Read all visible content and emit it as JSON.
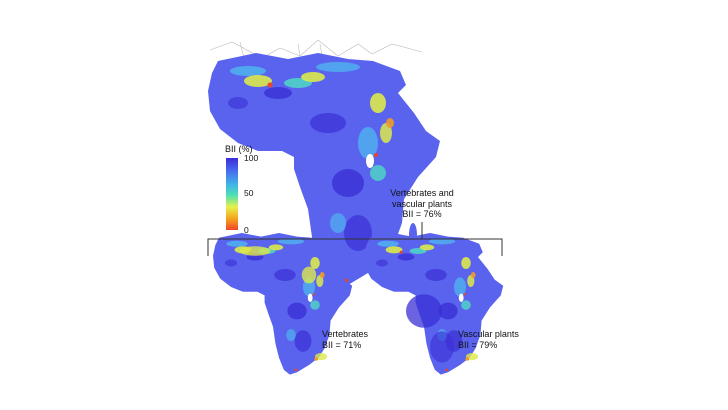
{
  "legend": {
    "title": "BII (%)",
    "ticks": [
      "100",
      "50",
      "0"
    ],
    "gradient_colors": [
      "#3b2bd8",
      "#4a6cf0",
      "#3fb8e6",
      "#4fe0b0",
      "#e6f24a",
      "#f4a51e",
      "#f0452a"
    ]
  },
  "maps": {
    "main": {
      "label_line1": "Vertebrates and",
      "label_line2": "vascular plants",
      "label_line3": "BII = 76%"
    },
    "vertebrates": {
      "label_line1": "Vertebrates",
      "label_line2": "BII = 71%"
    },
    "plants": {
      "label_line1": "Vascular plants",
      "label_line2": "BII = 79%"
    }
  },
  "colors": {
    "base": "#5a63ee",
    "deep": "#3a2fd6",
    "light": "#4fb3f0",
    "teal": "#4fd8c4",
    "yellow": "#dce94a",
    "orange": "#f09a28",
    "red": "#e8442a"
  }
}
